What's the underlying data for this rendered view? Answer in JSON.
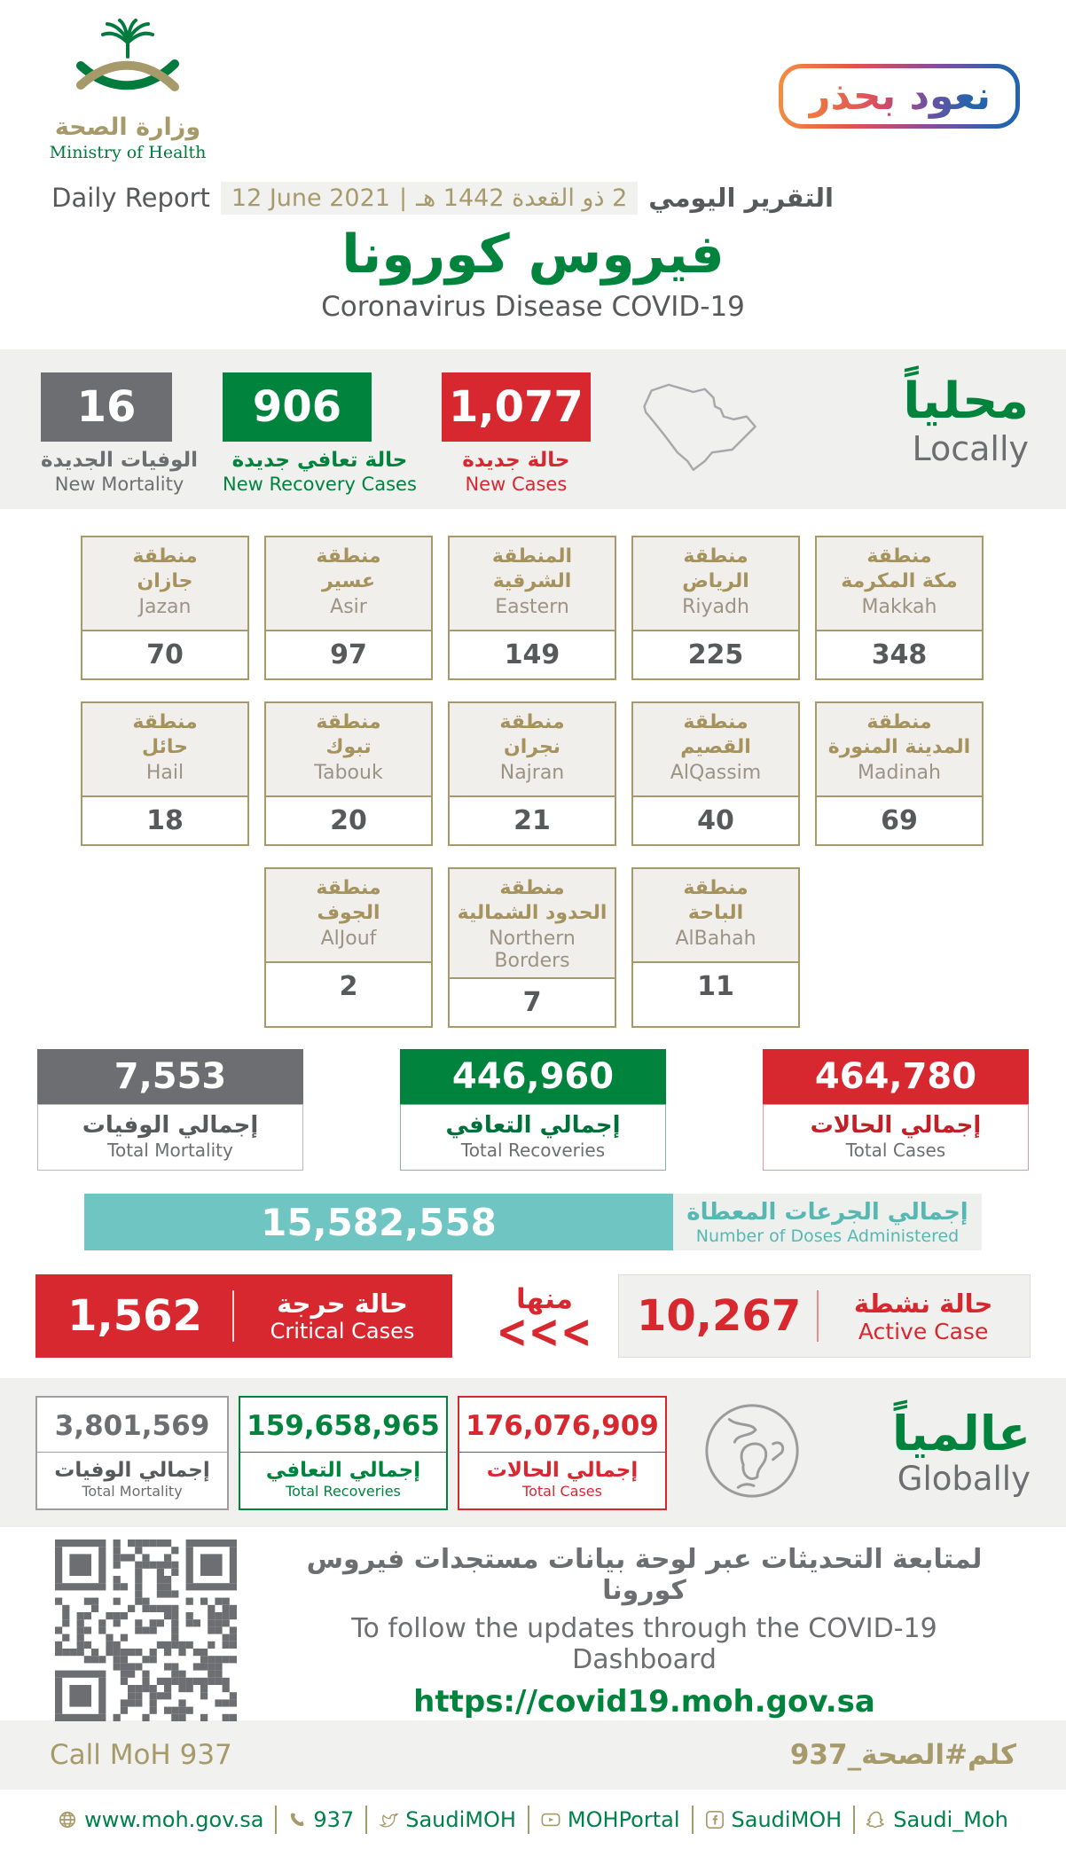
{
  "colors": {
    "green": "#00843d",
    "tan": "#a79a6a",
    "red": "#d7282f",
    "gray": "#6d6e71",
    "teal": "#6fc5c2"
  },
  "header": {
    "logo_ar": "وزارة الصحة",
    "logo_en": "Ministry of Health",
    "badge": "نعود بحذر",
    "report_en": "Daily Report",
    "date_en": "12 June 2021",
    "date_sep": "|",
    "date_ar": "2 ذو القعدة 1442 هـ",
    "report_ar": "التقرير اليومي",
    "title_ar": "فيروس كورونا",
    "title_en": "Coronavirus Disease COVID-19"
  },
  "locally": {
    "heading_ar": "محلياً",
    "heading_en": "Locally",
    "stats": [
      {
        "value": "16",
        "ar": "الوفيات الجديدة",
        "en": "New Mortality"
      },
      {
        "value": "906",
        "ar": "حالة تعافي جديدة",
        "en": "New Recovery Cases"
      },
      {
        "value": "1,077",
        "ar": "حالة جديدة",
        "en": "New Cases"
      }
    ]
  },
  "regions": [
    {
      "ar1": "منطقة",
      "ar2": "جازان",
      "en": "Jazan",
      "value": "70"
    },
    {
      "ar1": "منطقة",
      "ar2": "عسير",
      "en": "Asir",
      "value": "97"
    },
    {
      "ar1": "المنطقة",
      "ar2": "الشرقية",
      "en": "Eastern",
      "value": "149"
    },
    {
      "ar1": "منطقة",
      "ar2": "الرياض",
      "en": "Riyadh",
      "value": "225"
    },
    {
      "ar1": "منطقة",
      "ar2": "مكة المكرمة",
      "en": "Makkah",
      "value": "348"
    },
    {
      "ar1": "منطقة",
      "ar2": "حائل",
      "en": "Hail",
      "value": "18"
    },
    {
      "ar1": "منطقة",
      "ar2": "تبوك",
      "en": "Tabouk",
      "value": "20"
    },
    {
      "ar1": "منطقة",
      "ar2": "نجران",
      "en": "Najran",
      "value": "21"
    },
    {
      "ar1": "منطقة",
      "ar2": "القصيم",
      "en": "AlQassim",
      "value": "40"
    },
    {
      "ar1": "منطقة",
      "ar2": "المدينة المنورة",
      "en": "Madinah",
      "value": "69"
    },
    {
      "ar1": "منطقة",
      "ar2": "الجوف",
      "en": "AlJouf",
      "value": "2"
    },
    {
      "ar1": "منطقة",
      "ar2": "الحدود الشمالية",
      "en": "Northern Borders",
      "value": "7"
    },
    {
      "ar1": "منطقة",
      "ar2": "الباحة",
      "en": "AlBahah",
      "value": "11"
    }
  ],
  "totals": [
    {
      "value": "7,553",
      "ar": "إجمالي الوفيات",
      "en": "Total Mortality"
    },
    {
      "value": "446,960",
      "ar": "إجمالي التعافي",
      "en": "Total Recoveries"
    },
    {
      "value": "464,780",
      "ar": "إجمالي الحالات",
      "en": "Total Cases"
    }
  ],
  "doses": {
    "value": "15,582,558",
    "ar": "إجمالي الجرعات المعطاة",
    "en": "Number of Doses Administered"
  },
  "critical": {
    "value": "1,562",
    "ar": "حالة حرجة",
    "en": "Critical Cases"
  },
  "of_which": {
    "ar": "منها",
    "chevrons": "<<<"
  },
  "active": {
    "value": "10,267",
    "ar": "حالة نشطة",
    "en": "Active Case"
  },
  "globally": {
    "heading_ar": "عالمياً",
    "heading_en": "Globally",
    "stats": [
      {
        "value": "3,801,569",
        "ar": "إجمالي الوفيات",
        "en": "Total Mortality"
      },
      {
        "value": "159,658,965",
        "ar": "إجمالي التعافي",
        "en": "Total Recoveries"
      },
      {
        "value": "176,076,909",
        "ar": "إجمالي الحالات",
        "en": "Total Cases"
      }
    ]
  },
  "dashboard": {
    "ar": "لمتابعة التحديثات عبر لوحة بيانات مستجدات فيروس كورونا",
    "en": "To follow the updates through the COVID-19 Dashboard",
    "url": "https://covid19.moh.gov.sa"
  },
  "footer": {
    "call_en": "Call MoH 937",
    "call_ar": "كلم#الصحة_937"
  },
  "contact": {
    "items": [
      {
        "icon": "globe",
        "label": "www.moh.gov.sa"
      },
      {
        "icon": "phone",
        "label": "937"
      },
      {
        "icon": "twitter",
        "label": "SaudiMOH"
      },
      {
        "icon": "youtube",
        "label": "MOHPortal"
      },
      {
        "icon": "facebook",
        "label": "SaudiMOH"
      },
      {
        "icon": "snapchat",
        "label": "Saudi_Moh"
      }
    ]
  }
}
